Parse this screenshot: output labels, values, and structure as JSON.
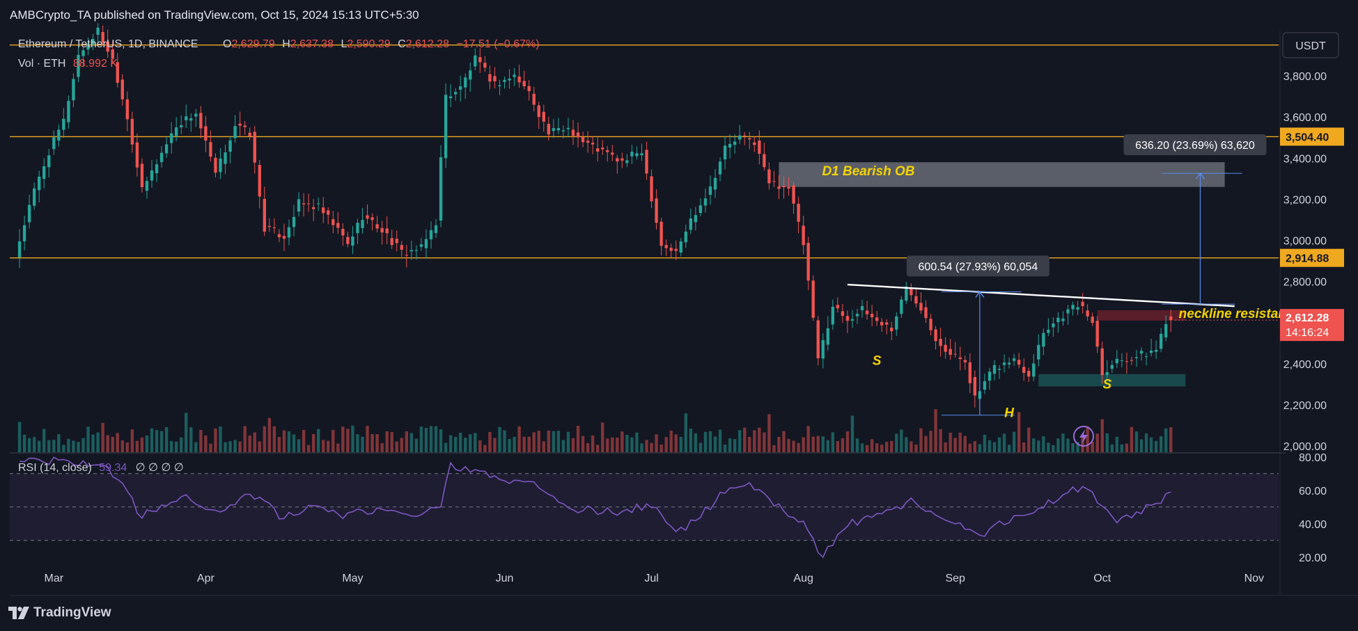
{
  "header": {
    "published_by": "AMBCrypto_TA published on TradingView.com, Oct 15, 2024 15:13 UTC+5:30"
  },
  "legend": {
    "symbol": "Ethereum / TetherUS, 1D, BINANCE",
    "open_label": "O",
    "open": "2,629.79",
    "high_label": "H",
    "high": "2,637.38",
    "low_label": "L",
    "low": "2,590.29",
    "close_label": "C",
    "close": "2,612.28",
    "change": "−17.51 (−0.67%)",
    "vol_label": "Vol · ETH",
    "vol": "88.992 K",
    "rsi_label": "RSI (14, close)",
    "rsi_value": "59.34",
    "rsi_extras": "∅ ∅ ∅ ∅"
  },
  "currency": "USDT",
  "footer": {
    "brand": "TradingView"
  },
  "colors": {
    "background": "#131722",
    "up": "#26a69a",
    "down": "#ef5350",
    "level_line": "#f0a91f",
    "rsi": "#7e57c2",
    "annotation_text": "#f5d400",
    "measure": "#5b8def"
  },
  "chart_data": {
    "type": "candlestick",
    "title": "Ethereum / TetherUS, 1D, BINANCE",
    "x_ticks": [
      "Mar",
      "Apr",
      "May",
      "Jun",
      "Jul",
      "Aug",
      "Sep",
      "Oct",
      "Nov"
    ],
    "x_tick_dates": [
      "2024-03-01",
      "2024-04-01",
      "2024-05-01",
      "2024-06-01",
      "2024-07-01",
      "2024-08-01",
      "2024-09-01",
      "2024-10-01",
      "2024-11-01"
    ],
    "y_ticks": [
      "3,800.00",
      "3,600.00",
      "3,400.00",
      "3,200.00",
      "3,000.00",
      "2,800.00",
      "2,600.00",
      "2,400.00",
      "2,200.00",
      "2,000.00"
    ],
    "y_tick_values": [
      3800,
      3600,
      3400,
      3200,
      3000,
      2800,
      2600,
      2400,
      2200,
      2000
    ],
    "ylim": [
      1970,
      4020
    ],
    "xlim": [
      "2024-02-21",
      "2024-11-06"
    ],
    "price_series": [
      {
        "date": "2024-02-23",
        "close": 2920
      },
      {
        "date": "2024-02-27",
        "close": 3240
      },
      {
        "date": "2024-03-01",
        "close": 3430
      },
      {
        "date": "2024-03-04",
        "close": 3580
      },
      {
        "date": "2024-03-07",
        "close": 3900
      },
      {
        "date": "2024-03-11",
        "close": 4020
      },
      {
        "date": "2024-03-14",
        "close": 3880
      },
      {
        "date": "2024-03-17",
        "close": 3600
      },
      {
        "date": "2024-03-20",
        "close": 3240
      },
      {
        "date": "2024-03-23",
        "close": 3380
      },
      {
        "date": "2024-03-27",
        "close": 3560
      },
      {
        "date": "2024-03-31",
        "close": 3620
      },
      {
        "date": "2024-04-04",
        "close": 3320
      },
      {
        "date": "2024-04-08",
        "close": 3560
      },
      {
        "date": "2024-04-11",
        "close": 3520
      },
      {
        "date": "2024-04-14",
        "close": 3060
      },
      {
        "date": "2024-04-18",
        "close": 3020
      },
      {
        "date": "2024-04-21",
        "close": 3180
      },
      {
        "date": "2024-04-25",
        "close": 3160
      },
      {
        "date": "2024-04-29",
        "close": 3050
      },
      {
        "date": "2024-05-01",
        "close": 2980
      },
      {
        "date": "2024-05-04",
        "close": 3120
      },
      {
        "date": "2024-05-08",
        "close": 3050
      },
      {
        "date": "2024-05-12",
        "close": 2940
      },
      {
        "date": "2024-05-16",
        "close": 2960
      },
      {
        "date": "2024-05-19",
        "close": 3090
      },
      {
        "date": "2024-05-21",
        "close": 3700
      },
      {
        "date": "2024-05-24",
        "close": 3740
      },
      {
        "date": "2024-05-27",
        "close": 3880
      },
      {
        "date": "2024-05-31",
        "close": 3760
      },
      {
        "date": "2024-06-04",
        "close": 3800
      },
      {
        "date": "2024-06-07",
        "close": 3720
      },
      {
        "date": "2024-06-11",
        "close": 3520
      },
      {
        "date": "2024-06-15",
        "close": 3550
      },
      {
        "date": "2024-06-18",
        "close": 3480
      },
      {
        "date": "2024-06-23",
        "close": 3420
      },
      {
        "date": "2024-06-26",
        "close": 3380
      },
      {
        "date": "2024-06-30",
        "close": 3440
      },
      {
        "date": "2024-07-04",
        "close": 2980
      },
      {
        "date": "2024-07-07",
        "close": 2940
      },
      {
        "date": "2024-07-10",
        "close": 3100
      },
      {
        "date": "2024-07-14",
        "close": 3260
      },
      {
        "date": "2024-07-17",
        "close": 3450
      },
      {
        "date": "2024-07-20",
        "close": 3500
      },
      {
        "date": "2024-07-23",
        "close": 3480
      },
      {
        "date": "2024-07-26",
        "close": 3280
      },
      {
        "date": "2024-07-30",
        "close": 3260
      },
      {
        "date": "2024-08-02",
        "close": 2980
      },
      {
        "date": "2024-08-05",
        "close": 2420
      },
      {
        "date": "2024-08-08",
        "close": 2680
      },
      {
        "date": "2024-08-11",
        "close": 2620
      },
      {
        "date": "2024-08-14",
        "close": 2660
      },
      {
        "date": "2024-08-17",
        "close": 2610
      },
      {
        "date": "2024-08-20",
        "close": 2570
      },
      {
        "date": "2024-08-23",
        "close": 2770
      },
      {
        "date": "2024-08-26",
        "close": 2680
      },
      {
        "date": "2024-08-29",
        "close": 2530
      },
      {
        "date": "2024-09-01",
        "close": 2440
      },
      {
        "date": "2024-09-04",
        "close": 2420
      },
      {
        "date": "2024-09-06",
        "close": 2230
      },
      {
        "date": "2024-09-10",
        "close": 2380
      },
      {
        "date": "2024-09-14",
        "close": 2420
      },
      {
        "date": "2024-09-17",
        "close": 2350
      },
      {
        "date": "2024-09-20",
        "close": 2560
      },
      {
        "date": "2024-09-24",
        "close": 2640
      },
      {
        "date": "2024-09-27",
        "close": 2690
      },
      {
        "date": "2024-09-30",
        "close": 2610
      },
      {
        "date": "2024-10-02",
        "close": 2360
      },
      {
        "date": "2024-10-05",
        "close": 2420
      },
      {
        "date": "2024-10-08",
        "close": 2430
      },
      {
        "date": "2024-10-11",
        "close": 2450
      },
      {
        "date": "2024-10-13",
        "close": 2470
      },
      {
        "date": "2024-10-15",
        "close": 2612
      }
    ],
    "horizontal_levels": [
      {
        "value": 3504.4,
        "label": "3,504.40"
      },
      {
        "value": 2914.88,
        "label": "2,914.88"
      },
      {
        "value": 3950
      }
    ],
    "last_price": {
      "value": 2612.28,
      "label": "2,612.28",
      "countdown": "14:16:24"
    },
    "zones": [
      {
        "name": "D1 Bearish OB",
        "from": "2024-07-27",
        "to": "2024-10-26",
        "top": 3380,
        "bottom": 3260
      },
      {
        "from": "2024-09-30",
        "to": "2024-10-18",
        "top": 2660,
        "bottom": 2610
      },
      {
        "from": "2024-09-18",
        "to": "2024-10-18",
        "top": 2350,
        "bottom": 2290
      }
    ],
    "neckline": {
      "label": "neckline resistance",
      "from": {
        "date": "2024-08-10",
        "value": 2785
      },
      "to": {
        "date": "2024-10-28",
        "value": 2680
      }
    },
    "measurements": [
      {
        "label": "600.54 (27.93%) 60,054",
        "date": "2024-09-06",
        "from": 2150,
        "to": 2750
      },
      {
        "label": "636.20 (23.69%) 63,620",
        "date": "2024-10-21",
        "from": 2690,
        "to": 3326
      }
    ],
    "pattern_labels": [
      {
        "text": "S",
        "date": "2024-08-16",
        "value": 2395
      },
      {
        "text": "H",
        "date": "2024-09-12",
        "value": 2140
      },
      {
        "text": "S",
        "date": "2024-10-02",
        "value": 2280
      }
    ],
    "rsi": {
      "y_ticks": [
        "80.00",
        "60.00",
        "40.00",
        "20.00"
      ],
      "y_tick_values": [
        80,
        60,
        40,
        20
      ],
      "ylim": [
        12,
        82
      ],
      "band": [
        30,
        70
      ],
      "series": [
        {
          "date": "2024-02-23",
          "value": 78
        },
        {
          "date": "2024-03-04",
          "value": 77
        },
        {
          "date": "2024-03-11",
          "value": 75
        },
        {
          "date": "2024-03-15",
          "value": 62
        },
        {
          "date": "2024-03-19",
          "value": 44
        },
        {
          "date": "2024-03-24",
          "value": 53
        },
        {
          "date": "2024-03-29",
          "value": 56
        },
        {
          "date": "2024-04-03",
          "value": 46
        },
        {
          "date": "2024-04-08",
          "value": 55
        },
        {
          "date": "2024-04-12",
          "value": 57
        },
        {
          "date": "2024-04-16",
          "value": 44
        },
        {
          "date": "2024-04-22",
          "value": 50
        },
        {
          "date": "2024-04-28",
          "value": 45
        },
        {
          "date": "2024-05-03",
          "value": 48
        },
        {
          "date": "2024-05-10",
          "value": 46
        },
        {
          "date": "2024-05-15",
          "value": 44
        },
        {
          "date": "2024-05-19",
          "value": 52
        },
        {
          "date": "2024-05-21",
          "value": 74
        },
        {
          "date": "2024-05-27",
          "value": 72
        },
        {
          "date": "2024-06-01",
          "value": 66
        },
        {
          "date": "2024-06-07",
          "value": 64
        },
        {
          "date": "2024-06-13",
          "value": 50
        },
        {
          "date": "2024-06-19",
          "value": 48
        },
        {
          "date": "2024-06-25",
          "value": 47
        },
        {
          "date": "2024-07-01",
          "value": 52
        },
        {
          "date": "2024-07-06",
          "value": 33
        },
        {
          "date": "2024-07-11",
          "value": 45
        },
        {
          "date": "2024-07-16",
          "value": 60
        },
        {
          "date": "2024-07-21",
          "value": 64
        },
        {
          "date": "2024-07-26",
          "value": 52
        },
        {
          "date": "2024-08-01",
          "value": 40
        },
        {
          "date": "2024-08-05",
          "value": 20
        },
        {
          "date": "2024-08-10",
          "value": 40
        },
        {
          "date": "2024-08-16",
          "value": 44
        },
        {
          "date": "2024-08-23",
          "value": 54
        },
        {
          "date": "2024-08-28",
          "value": 46
        },
        {
          "date": "2024-09-06",
          "value": 33
        },
        {
          "date": "2024-09-12",
          "value": 43
        },
        {
          "date": "2024-09-18",
          "value": 49
        },
        {
          "date": "2024-09-24",
          "value": 59
        },
        {
          "date": "2024-09-28",
          "value": 63
        },
        {
          "date": "2024-10-03",
          "value": 42
        },
        {
          "date": "2024-10-08",
          "value": 46
        },
        {
          "date": "2024-10-12",
          "value": 52
        },
        {
          "date": "2024-10-15",
          "value": 59
        }
      ]
    }
  }
}
